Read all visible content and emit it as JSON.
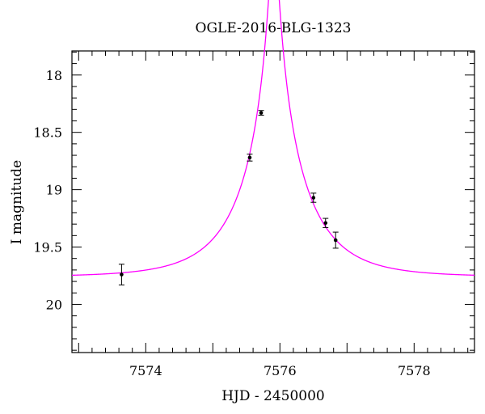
{
  "chart_data": {
    "type": "scatter",
    "title": "OGLE-2016-BLG-1323",
    "xlabel": "HJD - 2450000",
    "ylabel": "I magnitude",
    "xlim": [
      7572.9,
      7578.9
    ],
    "ylim": [
      20.42,
      17.79
    ],
    "y_inverted": true,
    "x_ticks": [
      7574,
      7576,
      7578
    ],
    "x_tick_labels": [
      "7574",
      "7576",
      "7578"
    ],
    "x_minor_step": 0.2,
    "y_ticks": [
      18,
      18.5,
      19,
      19.5,
      20
    ],
    "y_tick_labels": [
      "18",
      "18.5",
      "19",
      "19.5",
      "20"
    ],
    "y_minor_step": 0.1,
    "grid": false,
    "legend": "none",
    "series": [
      {
        "type": "points_with_errorbars",
        "color": "#000000",
        "x": [
          7573.64,
          7575.55,
          7575.72,
          7576.5,
          7576.68,
          7576.83
        ],
        "y": [
          19.74,
          18.72,
          18.33,
          19.07,
          19.29,
          19.44
        ],
        "yerr": [
          0.09,
          0.03,
          0.02,
          0.04,
          0.04,
          0.07
        ]
      },
      {
        "type": "model_curve",
        "color": "#ff00ff",
        "model": "point-lens",
        "params": {
          "t0": 7575.91,
          "tE": 0.93,
          "u0": 0.066,
          "mag_base": 19.76
        }
      }
    ]
  }
}
